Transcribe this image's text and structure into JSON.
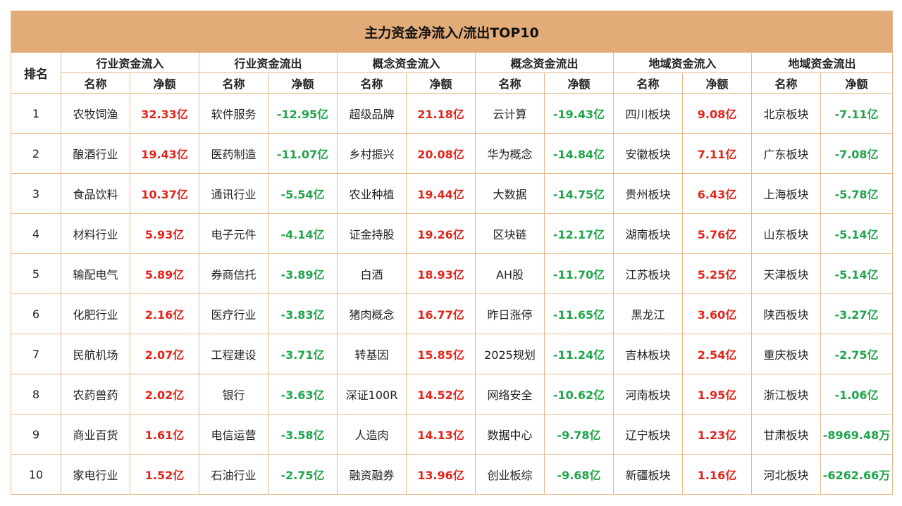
{
  "title": "主力资金净流入/流出TOP10",
  "rank_header": "排名",
  "groups": [
    "行业资金流入",
    "行业资金流出",
    "概念资金流入",
    "概念资金流出",
    "地域资金流入",
    "地域资金流出"
  ],
  "sub_headers": {
    "name": "名称",
    "amount": "净额"
  },
  "rows": [
    {
      "rank": "1",
      "cells": [
        [
          "农牧饲渔",
          "32.33亿"
        ],
        [
          "软件服务",
          "-12.95亿"
        ],
        [
          "超级品牌",
          "21.18亿"
        ],
        [
          "云计算",
          "-19.43亿"
        ],
        [
          "四川板块",
          "9.08亿"
        ],
        [
          "北京板块",
          "-7.11亿"
        ]
      ]
    },
    {
      "rank": "2",
      "cells": [
        [
          "酿酒行业",
          "19.43亿"
        ],
        [
          "医药制造",
          "-11.07亿"
        ],
        [
          "乡村振兴",
          "20.08亿"
        ],
        [
          "华为概念",
          "-14.84亿"
        ],
        [
          "安徽板块",
          "7.11亿"
        ],
        [
          "广东板块",
          "-7.08亿"
        ]
      ]
    },
    {
      "rank": "3",
      "cells": [
        [
          "食品饮料",
          "10.37亿"
        ],
        [
          "通讯行业",
          "-5.54亿"
        ],
        [
          "农业种植",
          "19.44亿"
        ],
        [
          "大数据",
          "-14.75亿"
        ],
        [
          "贵州板块",
          "6.43亿"
        ],
        [
          "上海板块",
          "-5.78亿"
        ]
      ]
    },
    {
      "rank": "4",
      "cells": [
        [
          "材料行业",
          "5.93亿"
        ],
        [
          "电子元件",
          "-4.14亿"
        ],
        [
          "证金持股",
          "19.26亿"
        ],
        [
          "区块链",
          "-12.17亿"
        ],
        [
          "湖南板块",
          "5.76亿"
        ],
        [
          "山东板块",
          "-5.14亿"
        ]
      ]
    },
    {
      "rank": "5",
      "cells": [
        [
          "输配电气",
          "5.89亿"
        ],
        [
          "券商信托",
          "-3.89亿"
        ],
        [
          "白酒",
          "18.93亿"
        ],
        [
          "AH股",
          "-11.70亿"
        ],
        [
          "江苏板块",
          "5.25亿"
        ],
        [
          "天津板块",
          "-5.14亿"
        ]
      ]
    },
    {
      "rank": "6",
      "cells": [
        [
          "化肥行业",
          "2.16亿"
        ],
        [
          "医疗行业",
          "-3.83亿"
        ],
        [
          "猪肉概念",
          "16.77亿"
        ],
        [
          "昨日涨停",
          "-11.65亿"
        ],
        [
          "黑龙江",
          "3.60亿"
        ],
        [
          "陕西板块",
          "-3.27亿"
        ]
      ]
    },
    {
      "rank": "7",
      "cells": [
        [
          "民航机场",
          "2.07亿"
        ],
        [
          "工程建设",
          "-3.71亿"
        ],
        [
          "转基因",
          "15.85亿"
        ],
        [
          "2025规划",
          "-11.24亿"
        ],
        [
          "吉林板块",
          "2.54亿"
        ],
        [
          "重庆板块",
          "-2.75亿"
        ]
      ]
    },
    {
      "rank": "8",
      "cells": [
        [
          "农药兽药",
          "2.02亿"
        ],
        [
          "银行",
          "-3.63亿"
        ],
        [
          "深证100R",
          "14.52亿"
        ],
        [
          "网络安全",
          "-10.62亿"
        ],
        [
          "河南板块",
          "1.95亿"
        ],
        [
          "浙江板块",
          "-1.06亿"
        ]
      ]
    },
    {
      "rank": "9",
      "cells": [
        [
          "商业百货",
          "1.61亿"
        ],
        [
          "电信运营",
          "-3.58亿"
        ],
        [
          "人造肉",
          "14.13亿"
        ],
        [
          "数据中心",
          "-9.78亿"
        ],
        [
          "辽宁板块",
          "1.23亿"
        ],
        [
          "甘肃板块",
          "-8969.48万"
        ]
      ]
    },
    {
      "rank": "10",
      "cells": [
        [
          "家电行业",
          "1.52亿"
        ],
        [
          "石油行业",
          "-2.75亿"
        ],
        [
          "融资融券",
          "13.96亿"
        ],
        [
          "创业板综",
          "-9.68亿"
        ],
        [
          "新疆板块",
          "1.16亿"
        ],
        [
          "河北板块",
          "-6262.66万"
        ]
      ]
    }
  ],
  "colors": {
    "header_bg": "#e2ac79",
    "border": "#e8b98c",
    "positive": "#e0251b",
    "negative": "#1fa44a"
  }
}
